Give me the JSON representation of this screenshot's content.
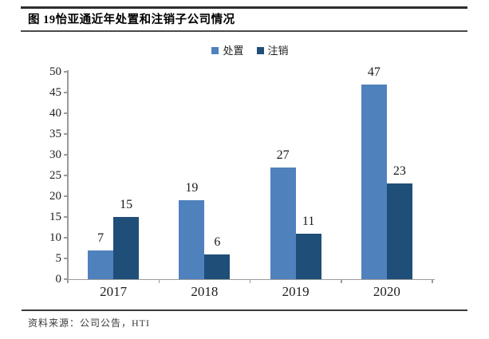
{
  "header": {
    "figure_title": "图 19怡亚通近年处置和注销子公司情况"
  },
  "chart_data": {
    "type": "bar",
    "title": "图 19怡亚通近年处置和注销子公司情况",
    "categories": [
      "2017",
      "2018",
      "2019",
      "2020"
    ],
    "series": [
      {
        "name": "处置",
        "color": "#4F81BD",
        "values": [
          7,
          19,
          27,
          47
        ]
      },
      {
        "name": "注销",
        "color": "#1F4E79",
        "values": [
          15,
          6,
          11,
          23
        ]
      }
    ],
    "xlabel": "",
    "ylabel": "",
    "ylim": [
      0,
      50
    ],
    "yticks": [
      0,
      5,
      10,
      15,
      20,
      25,
      30,
      35,
      40,
      45,
      50
    ],
    "grid": false,
    "legend_position": "top-center",
    "data_labels": true,
    "axis_color": "#9b9b9b",
    "text_color": "#1f1f1f"
  },
  "footer": {
    "source_text": "资料来源：公司公告，HTI"
  }
}
